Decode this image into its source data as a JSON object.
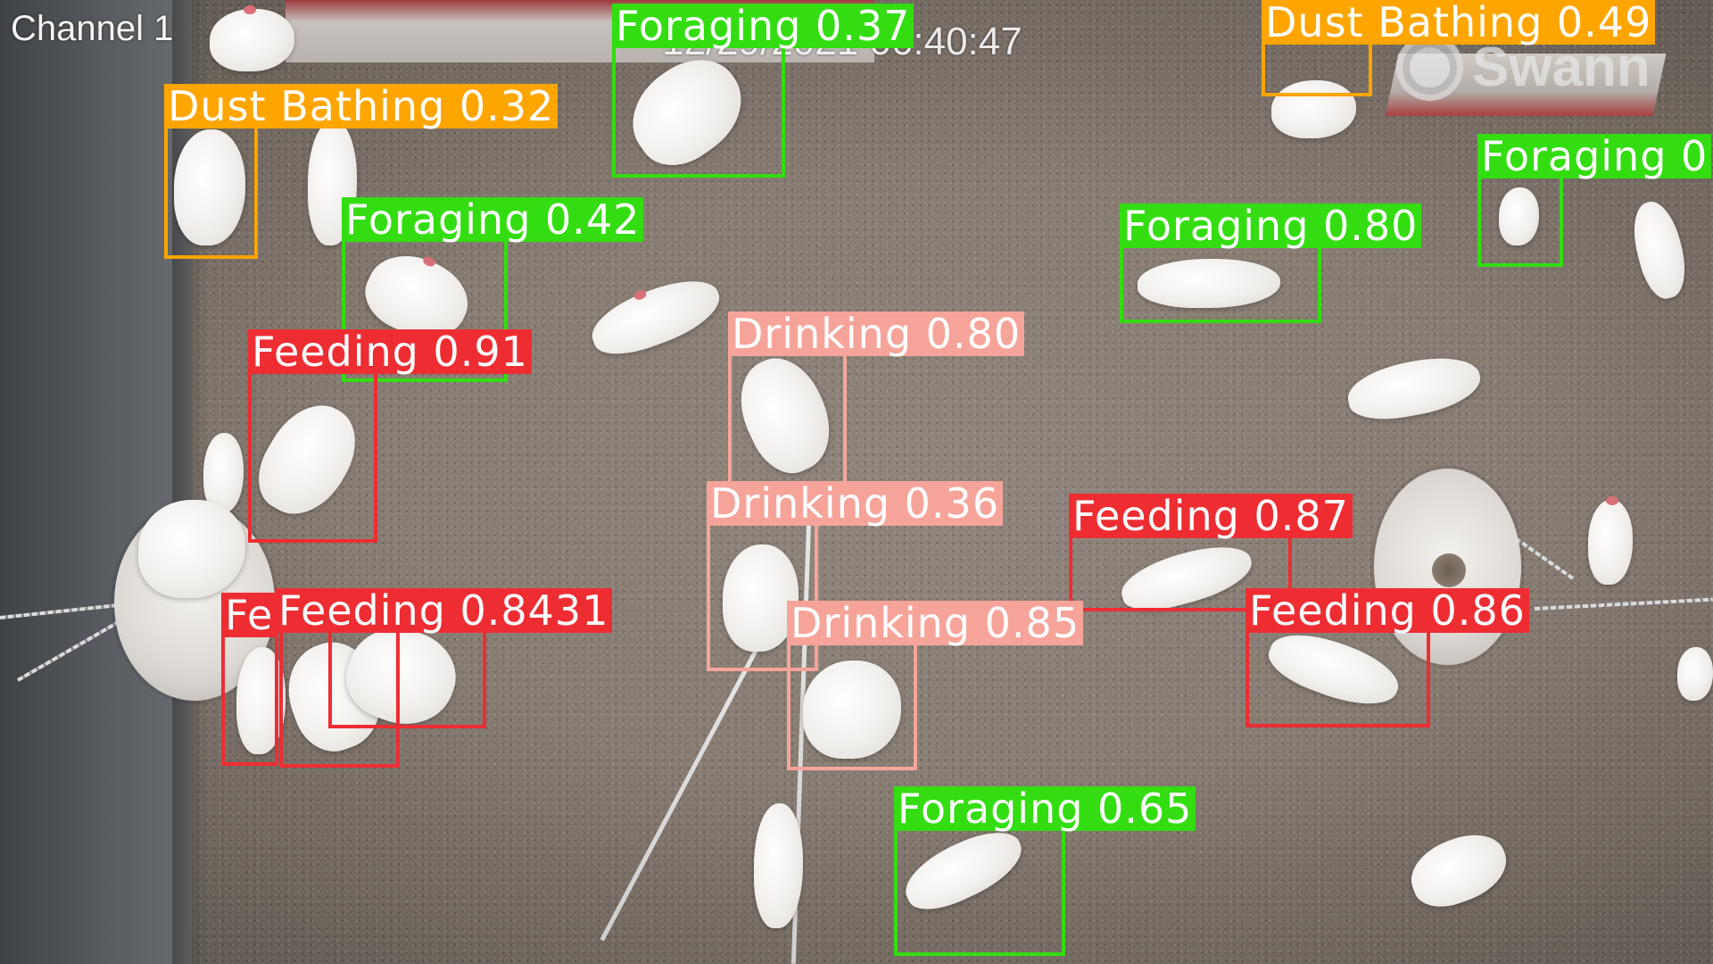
{
  "overlay": {
    "channel": "Channel 1",
    "timestamp": "12/29/2021 06:40:47",
    "watermark": "Swann"
  },
  "classes": {
    "Foraging": "#33dd11",
    "Dust Bathing": "#ffa500",
    "Feeding": "#ee2d33",
    "Drinking": "#f6a49a"
  },
  "detections": [
    {
      "label": "Foraging 0.37",
      "class": "Foraging"
    },
    {
      "label": "Dust Bathing 0.49",
      "class": "Dust Bathing"
    },
    {
      "label": "Dust Bathing 0.32",
      "class": "Dust Bathing"
    },
    {
      "label": "Foraging 0",
      "class": "Foraging"
    },
    {
      "label": "Foraging 0.42",
      "class": "Foraging"
    },
    {
      "label": "Foraging 0.80",
      "class": "Foraging"
    },
    {
      "label": "Feeding 0.91",
      "class": "Feeding"
    },
    {
      "label": "Drinking 0.80",
      "class": "Drinking"
    },
    {
      "label": "Drinking 0.36",
      "class": "Drinking"
    },
    {
      "label": "Feeding 0.87",
      "class": "Feeding"
    },
    {
      "label": "Fe",
      "class": "Feeding"
    },
    {
      "label": "Feeding 0.8431",
      "class": "Feeding"
    },
    {
      "label": "Drinking 0.85",
      "class": "Drinking"
    },
    {
      "label": "Feeding 0.86",
      "class": "Feeding"
    },
    {
      "label": "Foraging 0.65",
      "class": "Foraging"
    }
  ]
}
